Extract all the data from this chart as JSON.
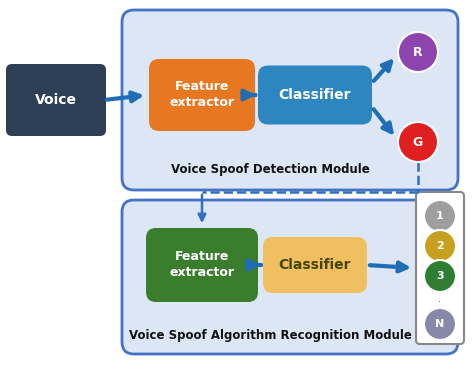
{
  "bg_color": "#ffffff",
  "top_box_edge_color": "#4472c4",
  "bottom_box_edge_color": "#4472c4",
  "top_box_face_color": "#dce6f5",
  "bottom_box_face_color": "#dce6f5",
  "voice_box_color": "#2d3f55",
  "feature_extractor_top_color": "#e87722",
  "classifier_top_color": "#2e86c1",
  "feature_extractor_bottom_color": "#3a7d2c",
  "classifier_bottom_color": "#f0c060",
  "circle_R_color": "#8e44ad",
  "circle_G_color": "#e02020",
  "circle_1_color": "#9e9e9e",
  "circle_2_color": "#c8a020",
  "circle_3_color": "#2e7d32",
  "circle_N_color": "#8888aa",
  "arrow_color": "#1f6eb5",
  "dashed_color": "#3070c0",
  "list_box_edge": "#888888",
  "title_top": "Voice Spoof Detection Module",
  "title_bottom": "Voice Spoof Algorithm Recognition Module",
  "label_voice": "Voice",
  "label_feat_top": "Feature\nextractor",
  "label_class_top": "Classifier",
  "label_feat_bot": "Feature\nextractor",
  "label_class_bot": "Classifier",
  "label_R": "R",
  "label_G": "G",
  "label_1": "1",
  "label_2": "2",
  "label_3": "3",
  "label_N": "N"
}
